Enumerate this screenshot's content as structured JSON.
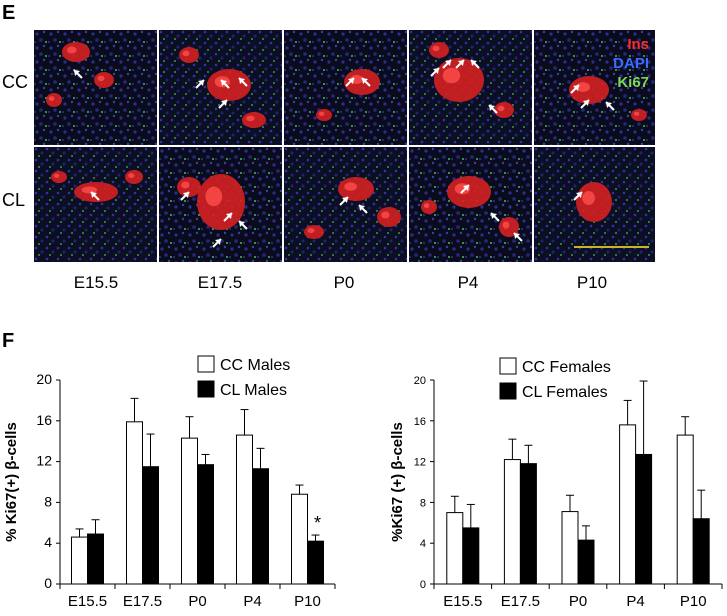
{
  "panel_e": {
    "letter": "E",
    "rows": [
      "CC",
      "CL"
    ],
    "columns": [
      "E15.5",
      "E17.5",
      "P0",
      "P4",
      "P10"
    ],
    "stain_legend": [
      {
        "label": "Ins",
        "color": "#ff2a2a"
      },
      {
        "label": "DAPI",
        "color": "#3a6cff"
      },
      {
        "label": "Ki67",
        "color": "#7ed957"
      }
    ],
    "colors": {
      "background": "#0a0c1e",
      "cells": "#2a2f8a",
      "islet": "#d42020",
      "ki67": "#3fbf4f",
      "arrow": "#ffffff",
      "scale_bar": "#c8b428"
    }
  },
  "panel_f": {
    "letter": "F",
    "significance_marker": "*"
  },
  "chart_data": [
    {
      "type": "bar",
      "ylabel": "% Ki67(+) β-cells",
      "xlabel": "",
      "categories": [
        "E15.5",
        "E17.5",
        "P0",
        "P4",
        "P10"
      ],
      "ylim": [
        0,
        20
      ],
      "yticks": [
        "0",
        "4",
        "8",
        "12",
        "16",
        "20"
      ],
      "legend_position": "top-right",
      "series": [
        {
          "name": "CC Males",
          "fill": "#ffffff",
          "values": [
            4.6,
            15.9,
            14.3,
            14.6,
            8.8
          ],
          "errors": [
            0.8,
            2.3,
            2.1,
            2.5,
            0.9
          ]
        },
        {
          "name": "CL Males",
          "fill": "#000000",
          "values": [
            4.9,
            11.5,
            11.7,
            11.3,
            4.2
          ],
          "errors": [
            1.4,
            3.2,
            1.0,
            2.0,
            0.6
          ]
        }
      ],
      "annotations": [
        {
          "category": "P10",
          "series": "CL Males",
          "text": "*"
        }
      ]
    },
    {
      "type": "bar",
      "ylabel": "%Ki67 (+) β-cells",
      "xlabel": "",
      "categories": [
        "E15.5",
        "E17.5",
        "P0",
        "P4",
        "P10"
      ],
      "ylim": [
        0,
        20
      ],
      "yticks": [
        "0",
        "4",
        "8",
        "12",
        "16",
        "20"
      ],
      "legend_position": "top-right",
      "series": [
        {
          "name": "CC Females",
          "fill": "#ffffff",
          "values": [
            7.0,
            12.2,
            7.1,
            15.6,
            14.6
          ],
          "errors": [
            1.6,
            2.0,
            1.6,
            2.4,
            1.8
          ]
        },
        {
          "name": "CL Females",
          "fill": "#000000",
          "values": [
            5.5,
            11.8,
            4.3,
            12.7,
            6.4
          ],
          "errors": [
            2.3,
            1.8,
            1.4,
            7.2,
            2.8
          ]
        }
      ]
    }
  ]
}
